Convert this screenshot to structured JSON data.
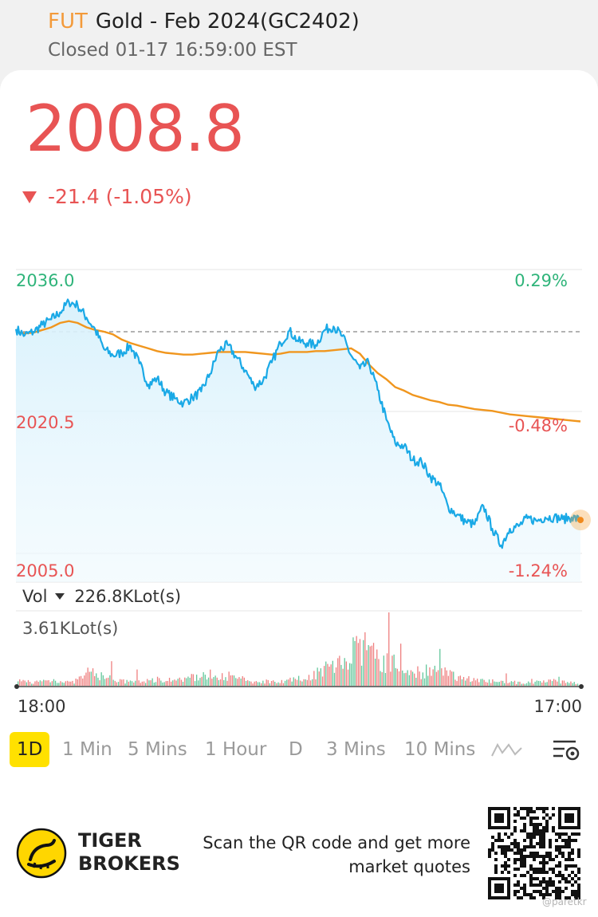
{
  "header": {
    "tag": "FUT",
    "title": "Gold - Feb 2024(GC2402)",
    "status": "Closed 01-17 16:59:00 EST"
  },
  "quote": {
    "price": "2008.8",
    "change": "-21.4 (-1.05%)"
  },
  "chart": {
    "y_high": "2036.0",
    "y_mid": "2020.5",
    "y_low": "2005.0",
    "pct_high": "0.29%",
    "pct_mid": "-0.48%",
    "pct_low": "-1.24%",
    "x_start": "18:00",
    "x_end": "17:00",
    "price_color": "#1aa9e6",
    "avg_color": "#f0961e",
    "up_color": "#e85454",
    "down_color": "#2fb47a"
  },
  "volume": {
    "label": "Vol",
    "total": "226.8KLot(s)",
    "max": "3.61KLot(s)"
  },
  "timeframes": [
    "1D",
    "1 Min",
    "5 Mins",
    "1 Hour",
    "D",
    "3 Mins",
    "10 Mins"
  ],
  "footer": {
    "brand_line1": "TIGER",
    "brand_line2": "BROKERS",
    "promo_line1": "Scan the QR code and get more",
    "promo_line2": "market quotes",
    "watermark": "@paretkr"
  },
  "chart_data": {
    "type": "line",
    "y_ticks": [
      "2036.0",
      "2020.5",
      "2005.0"
    ],
    "pct_ticks": [
      "0.29%",
      "-0.48%",
      "-1.24%"
    ],
    "x_ticks": [
      "18:00",
      "17:00"
    ],
    "ylim": [
      2005.0,
      2036.0
    ],
    "prev_close": 2030.2,
    "series": [
      {
        "values": [
          2030.5,
          2029.8,
          2030.2,
          2031.0,
          2031.6,
          2032.4,
          2033.6,
          2033.2,
          2031.8,
          2030.4,
          2028.2,
          2027.5,
          2027.8,
          2028.6,
          2026.6,
          2024.2,
          2024.9,
          2023.3,
          2022.6,
          2022.1,
          2022.7,
          2023.4,
          2025.4,
          2028.1,
          2028.7,
          2027.3,
          2025.8,
          2024.0,
          2024.6,
          2026.7,
          2028.9,
          2030.3,
          2029.1,
          2028.9,
          2028.7,
          2030.4,
          2030.8,
          2029.7,
          2027.5,
          2026.0,
          2026.7,
          2023.6,
          2020.2,
          2017.5,
          2017.2,
          2015.6,
          2015.4,
          2013.7,
          2012.8,
          2010.3,
          2009.4,
          2008.6,
          2008.3,
          2010.4,
          2007.8,
          2005.9,
          2007.8,
          2008.1,
          2009.0,
          2008.7,
          2009.1,
          2009.1,
          2008.9,
          2009.1,
          2008.8
        ]
      },
      {
        "values": [
          2030.2,
          2030.0,
          2030.1,
          2030.4,
          2030.7,
          2031.2,
          2031.4,
          2031.2,
          2030.7,
          2030.4,
          2030.2,
          2029.9,
          2029.3,
          2028.9,
          2028.6,
          2028.3,
          2028.0,
          2027.8,
          2027.7,
          2027.6,
          2027.6,
          2027.7,
          2027.8,
          2027.9,
          2027.9,
          2027.9,
          2027.9,
          2027.8,
          2027.7,
          2027.6,
          2027.7,
          2027.9,
          2027.9,
          2027.9,
          2028.0,
          2028.0,
          2028.1,
          2028.2,
          2028.3,
          2027.7,
          2026.5,
          2025.5,
          2024.8,
          2023.9,
          2023.5,
          2023.0,
          2022.7,
          2022.4,
          2022.2,
          2021.9,
          2021.8,
          2021.6,
          2021.4,
          2021.3,
          2021.2,
          2021.0,
          2020.8,
          2020.7,
          2020.6,
          2020.5,
          2020.4,
          2020.3,
          2020.2,
          2020.1,
          2020.0
        ]
      }
    ],
    "volume": {
      "max": "3.61KLot(s)",
      "peaks": [
        0.12,
        0.1,
        0.15,
        0.08,
        0.35,
        0.2,
        0.1,
        0.12,
        0.18,
        0.14,
        0.25,
        0.3,
        0.22,
        0.1,
        0.12,
        0.14,
        0.2,
        0.45,
        0.62,
        1.0,
        0.72,
        0.44,
        0.35,
        0.38,
        0.28,
        0.18,
        0.12,
        0.1,
        0.08,
        0.1,
        0.12,
        0.08
      ]
    }
  }
}
